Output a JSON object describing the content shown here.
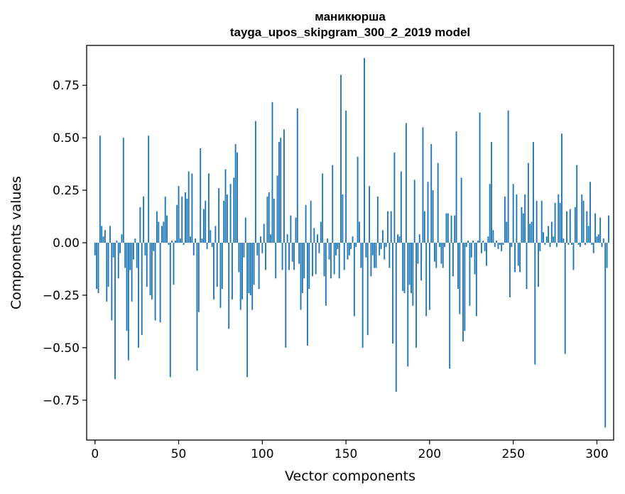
{
  "chart_data": {
    "type": "bar",
    "title_line1": "маникюрша",
    "title_line2": "tayga_upos_skipgram_300_2_2019 model",
    "xlabel": "Vector components",
    "ylabel": "Components values",
    "xlim": [
      -5,
      310
    ],
    "ylim": [
      -0.94,
      0.94
    ],
    "xticks": [
      0,
      50,
      100,
      150,
      200,
      250,
      300
    ],
    "yticks": [
      -0.75,
      -0.5,
      -0.25,
      0.0,
      0.25,
      0.5,
      0.75
    ],
    "ytick_labels": [
      "−0.75",
      "−0.50",
      "−0.25",
      "0.00",
      "0.25",
      "0.50",
      "0.75"
    ],
    "bar_color": "#1f77b4",
    "grid": false,
    "values": [
      -0.06,
      -0.22,
      -0.24,
      0.51,
      0.08,
      0.03,
      0.06,
      -0.28,
      -0.21,
      0.08,
      -0.37,
      -0.07,
      -0.65,
      0.01,
      -0.17,
      -0.05,
      0.04,
      0.5,
      -0.12,
      -0.42,
      -0.56,
      -0.13,
      -0.28,
      -0.08,
      0.02,
      -0.12,
      -0.5,
      0.17,
      -0.44,
      0.22,
      -0.06,
      -0.21,
      0.51,
      -0.25,
      -0.27,
      -0.04,
      -0.37,
      0.15,
      0.1,
      -0.38,
      0.08,
      0.1,
      0.22,
      0.13,
      -0.01,
      -0.64,
      0.01,
      -0.2,
      0.01,
      0.18,
      0.27,
      0.02,
      0.22,
      -0.01,
      0.24,
      0.21,
      0.34,
      0.03,
      0.33,
      -0.06,
      0.02,
      -0.61,
      -0.33,
      0.45,
      0.02,
      0.16,
      0.2,
      -0.03,
      0.33,
      0.06,
      -0.02,
      -0.27,
      0.08,
      -0.21,
      0.26,
      -0.31,
      -0.22,
      0.2,
      0.35,
      0.23,
      -0.41,
      0.28,
      -0.27,
      0.31,
      0.47,
      0.43,
      -0.14,
      -0.32,
      -0.27,
      -0.07,
      0.12,
      -0.64,
      -0.24,
      -0.25,
      -0.32,
      -0.2,
      0.58,
      -0.06,
      -0.22,
      0.03,
      -0.05,
      0.09,
      -0.13,
      0.22,
      0.24,
      0.04,
      0.67,
      0.21,
      -0.17,
      0.32,
      0.48,
      0.5,
      -0.13,
      0.54,
      -0.5,
      0.04,
      -0.13,
      0.13,
      -0.09,
      -0.13,
      0.12,
      0.64,
      -0.1,
      -0.32,
      -0.24,
      -0.17,
      0.18,
      -0.49,
      -0.22,
      0.2,
      -0.16,
      0.07,
      -0.15,
      0.04,
      -0.05,
      0.1,
      0.33,
      -0.16,
      -0.3,
      0.02,
      -0.08,
      -0.17,
      0.37,
      -0.15,
      -0.06,
      -0.03,
      -0.17,
      0.8,
      0.23,
      -0.13,
      0.63,
      -0.08,
      -0.06,
      -0.03,
      0.03,
      -0.35,
      -0.02,
      0.41,
      0.1,
      -0.12,
      -0.5,
      0.88,
      -0.07,
      -0.44,
      0.27,
      -0.16,
      -0.06,
      -0.12,
      -0.12,
      0.22,
      -0.06,
      -0.03,
      0.06,
      -0.08,
      -0.02,
      0.15,
      -0.12,
      0.15,
      -0.48,
      0.43,
      -0.71,
      0.04,
      0.03,
      0.34,
      -0.23,
      -0.24,
      0.57,
      -0.59,
      -0.2,
      -0.24,
      -0.3,
      0.3,
      -0.5,
      -0.1,
      0.04,
      -0.18,
      0.55,
      0.15,
      -0.35,
      0.29,
      -0.32,
      0.47,
      0.25,
      -0.09,
      -0.12,
      0.38,
      -0.02,
      -0.1,
      -0.12,
      -0.02,
      0.14,
      0.14,
      -0.6,
      0.13,
      -0.16,
      0.13,
      0.53,
      -0.22,
      -0.34,
      0.31,
      -0.47,
      -0.42,
      -0.02,
      0.01,
      -0.3,
      -0.07,
      0.01,
      -0.15,
      -0.35,
      0.01,
      0.62,
      -0.05,
      0.01,
      -0.04,
      -0.11,
      0.03,
      0.28,
      0.48,
      0.06,
      -0.02,
      0.01,
      -0.03,
      -0.01,
      -0.04,
      -0.01,
      0.22,
      0.1,
      0.63,
      -0.26,
      -0.02,
      0.28,
      -0.14,
      0.23,
      -0.11,
      -0.14,
      0.17,
      0.14,
      0.23,
      -0.22,
      0.38,
      0.09,
      0.1,
      0.48,
      -0.58,
      0.2,
      -0.21,
      -0.04,
      0.2,
      0.05,
      -0.01,
      0.03,
      0.08,
      -0.02,
      0.1,
      0.03,
      0.19,
      -0.02,
      0.23,
      0.19,
      0.52,
      0.02,
      -0.53,
      0.15,
      -0.01,
      0.16,
      -0.01,
      -0.13,
      0.17,
      0.37,
      -0.01,
      -0.02,
      0.23,
      0.2,
      -0.01,
      0.15,
      0.08,
      0.29,
      -0.01,
      -0.05,
      0.14,
      0.03,
      0.04,
      0.12,
      -0.02,
      0.02,
      -0.88,
      -0.12,
      0.13
    ]
  }
}
